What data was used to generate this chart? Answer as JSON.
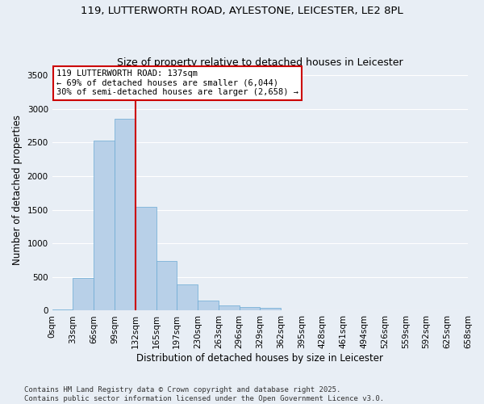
{
  "title_line1": "119, LUTTERWORTH ROAD, AYLESTONE, LEICESTER, LE2 8PL",
  "title_line2": "Size of property relative to detached houses in Leicester",
  "xlabel": "Distribution of detached houses by size in Leicester",
  "ylabel": "Number of detached properties",
  "bar_values": [
    15,
    480,
    2530,
    2850,
    1540,
    740,
    390,
    155,
    80,
    55,
    45,
    0,
    0,
    0,
    0,
    0,
    0,
    0,
    0,
    0
  ],
  "bin_labels": [
    "0sqm",
    "33sqm",
    "66sqm",
    "99sqm",
    "132sqm",
    "165sqm",
    "197sqm",
    "230sqm",
    "263sqm",
    "296sqm",
    "329sqm",
    "362sqm",
    "395sqm",
    "428sqm",
    "461sqm",
    "494sqm",
    "526sqm",
    "559sqm",
    "592sqm",
    "625sqm",
    "658sqm"
  ],
  "bar_color": "#b8d0e8",
  "bar_edge_color": "#6aaad4",
  "annotation_text": "119 LUTTERWORTH ROAD: 137sqm\n← 69% of detached houses are smaller (6,044)\n30% of semi-detached houses are larger (2,658) →",
  "annotation_box_color": "#ffffff",
  "annotation_box_edge_color": "#cc0000",
  "vline_color": "#cc0000",
  "vline_x_bar": 4,
  "ylim": [
    0,
    3600
  ],
  "yticks": [
    0,
    500,
    1000,
    1500,
    2000,
    2500,
    3000,
    3500
  ],
  "footer_text": "Contains HM Land Registry data © Crown copyright and database right 2025.\nContains public sector information licensed under the Open Government Licence v3.0.",
  "bg_color": "#e8eef5",
  "grid_color": "#ffffff",
  "title_fontsize": 9.5,
  "subtitle_fontsize": 9,
  "axis_label_fontsize": 8.5,
  "tick_fontsize": 7.5,
  "annotation_fontsize": 7.5,
  "footer_fontsize": 6.5
}
